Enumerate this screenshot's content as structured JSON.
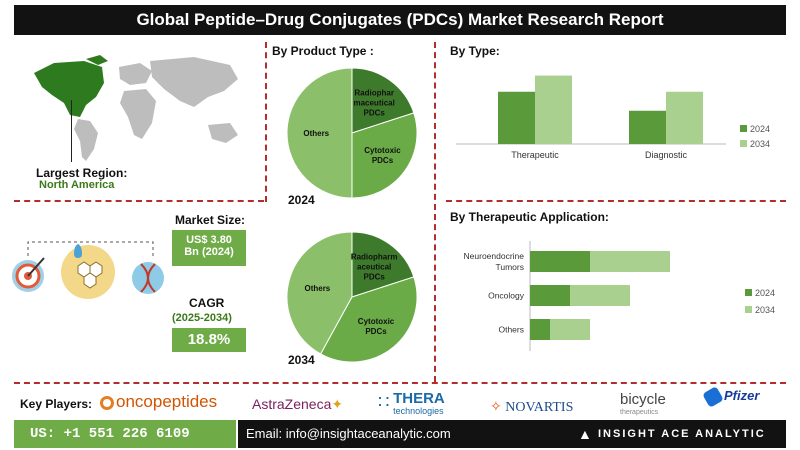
{
  "title": "Global Peptide–Drug Conjugates (PDCs) Market Research Report",
  "region": {
    "label": "Largest Region:",
    "value": "North America",
    "highlight_color": "#3a7a1a"
  },
  "market": {
    "size_label": "Market Size:",
    "size_value_line1": "US$ 3.80",
    "size_value_line2": "Bn (2024)",
    "cagr_label": "CAGR",
    "cagr_period": "(2025-2034)",
    "cagr_value": "18.8%"
  },
  "key_players": {
    "label": "Key Players:",
    "logos": [
      "oncopeptides",
      "AstraZeneca",
      "THERA",
      "technologies",
      "NOVARTIS",
      "bicycle",
      "therapeutics",
      "Pfizer"
    ]
  },
  "footer": {
    "phone": "US: +1 551 226 6109",
    "email": "Email: info@insightaceanalytic.com",
    "brand": "INSIGHT ACE ANALYTIC"
  },
  "colors": {
    "dark_green": "#5a9a3a",
    "light_green": "#a9d08e",
    "pie_others": "#8cbf6a",
    "pie_cytotoxic": "#6aab47",
    "pie_radio": "#3e7a2b",
    "accent_red": "#b22d2d"
  },
  "chart_data": [
    {
      "type": "pie",
      "title": "By Product Type :",
      "year_label": "2024",
      "slices": [
        {
          "label": "Others",
          "value": 50
        },
        {
          "label": "Radiopharmaceutical PDCs",
          "value": 20
        },
        {
          "label": "Cytotoxic PDCs",
          "value": 30
        }
      ]
    },
    {
      "type": "pie",
      "year_label": "2034",
      "slices": [
        {
          "label": "Others",
          "value": 42
        },
        {
          "label": "Radiopharmaceutical PDCs",
          "value": 20
        },
        {
          "label": "Cytotoxic PDCs",
          "value": 38
        }
      ]
    },
    {
      "type": "bar",
      "title": "By Type:",
      "categories": [
        "Therapeutic",
        "Diagnostic"
      ],
      "series": [
        {
          "name": "2024",
          "values": [
            55,
            35
          ]
        },
        {
          "name": "2034",
          "values": [
            72,
            55
          ]
        }
      ],
      "ylim": [
        0,
        80
      ]
    },
    {
      "type": "bar",
      "orientation": "horizontal",
      "stacked": true,
      "title": "By Therapeutic Application:",
      "categories": [
        "Neuroendocrine Tumors",
        "Oncology",
        "Others"
      ],
      "series": [
        {
          "name": "2024",
          "values": [
            30,
            20,
            10
          ]
        },
        {
          "name": "2034",
          "values": [
            40,
            30,
            20
          ]
        }
      ],
      "xlim": [
        0,
        110
      ]
    }
  ]
}
